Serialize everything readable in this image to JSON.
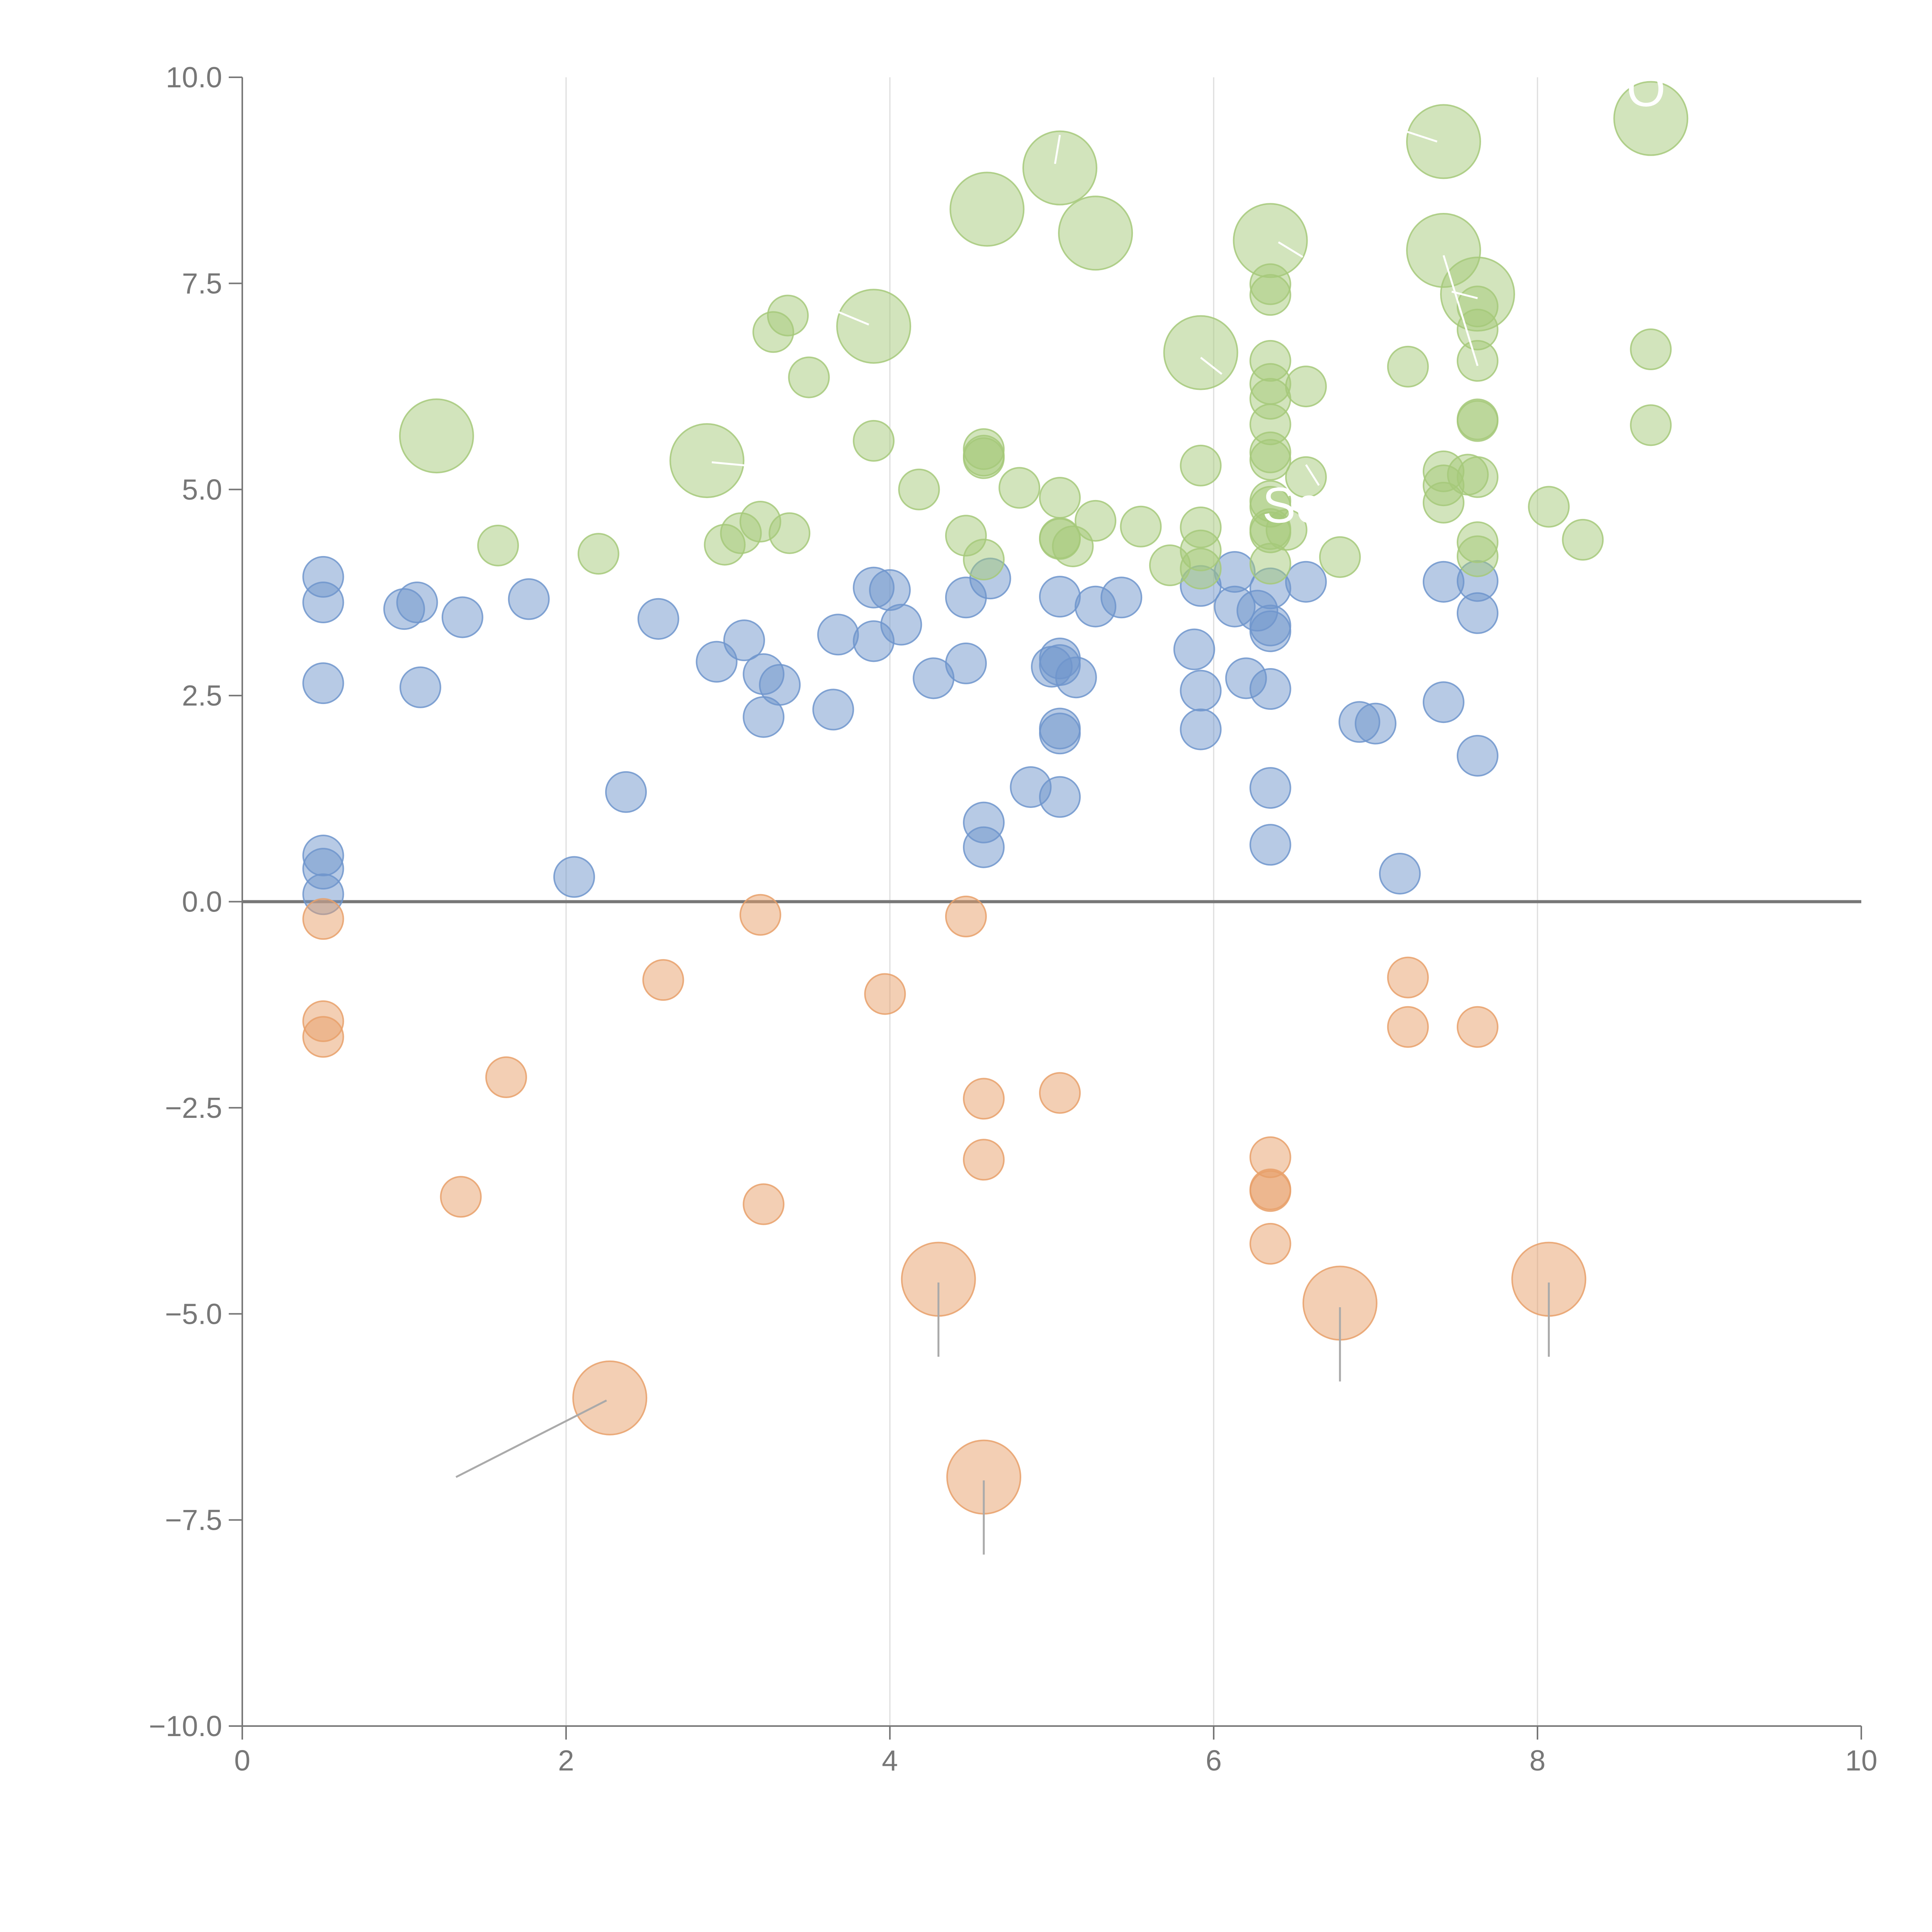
{
  "chart_data": {
    "type": "scatter",
    "title": "",
    "xlabel": "",
    "ylabel": "",
    "xlim": [
      0,
      10
    ],
    "ylim": [
      -10,
      10
    ],
    "x_ticks": [
      0,
      2,
      4,
      6,
      8,
      10
    ],
    "y_ticks": [
      -10,
      -7.5,
      -5,
      -2.5,
      0,
      2.5,
      5,
      7.5,
      10
    ],
    "x_tick_labels": [
      "0",
      "2",
      "4",
      "6",
      "8",
      "10"
    ],
    "y_tick_labels": [
      "−10.0",
      "−7.5",
      "−5.0",
      "−2.5",
      "0.0",
      "2.5",
      "5.0",
      "7.5",
      "10.0"
    ],
    "vertical_gridlines": [
      2,
      4,
      6,
      8
    ],
    "zero_line": 0,
    "colors": {
      "blue": "#6f95cc",
      "green": "#a6c97a",
      "orange": "#e8a06a",
      "axis": "#777777",
      "grid": "#dddddd",
      "zero_line": "#777777",
      "leader": "#aaaaaa",
      "annot": "#ffffff"
    },
    "series": [
      {
        "name": "blue",
        "color_key": "blue",
        "points": [
          {
            "x": 0.5,
            "y": 3.94
          },
          {
            "x": 0.5,
            "y": 3.63
          },
          {
            "x": 0.5,
            "y": 2.65
          },
          {
            "x": 1.0,
            "y": 3.55
          },
          {
            "x": 1.08,
            "y": 3.63
          },
          {
            "x": 1.1,
            "y": 2.6
          },
          {
            "x": 1.36,
            "y": 3.45
          },
          {
            "x": 1.77,
            "y": 3.67
          },
          {
            "x": 2.57,
            "y": 3.43
          },
          {
            "x": 2.93,
            "y": 2.91
          },
          {
            "x": 3.1,
            "y": 3.17
          },
          {
            "x": 3.22,
            "y": 2.76
          },
          {
            "x": 3.22,
            "y": 2.24
          },
          {
            "x": 3.32,
            "y": 2.63
          },
          {
            "x": 3.65,
            "y": 2.33
          },
          {
            "x": 3.68,
            "y": 3.24
          },
          {
            "x": 3.9,
            "y": 3.81
          },
          {
            "x": 3.9,
            "y": 3.16
          },
          {
            "x": 4.0,
            "y": 3.78
          },
          {
            "x": 4.07,
            "y": 3.36
          },
          {
            "x": 4.27,
            "y": 2.71
          },
          {
            "x": 4.47,
            "y": 3.69
          },
          {
            "x": 4.47,
            "y": 2.89
          },
          {
            "x": 4.62,
            "y": 3.92
          },
          {
            "x": 5.0,
            "y": 2.85
          },
          {
            "x": 5.05,
            "y": 2.95
          },
          {
            "x": 5.05,
            "y": 2.87
          },
          {
            "x": 5.05,
            "y": 3.7
          },
          {
            "x": 5.15,
            "y": 2.72
          },
          {
            "x": 5.27,
            "y": 3.58
          },
          {
            "x": 5.43,
            "y": 3.69
          },
          {
            "x": 5.88,
            "y": 3.06
          },
          {
            "x": 5.92,
            "y": 3.83
          },
          {
            "x": 5.92,
            "y": 2.56
          },
          {
            "x": 5.92,
            "y": 2.09
          },
          {
            "x": 6.13,
            "y": 4.0
          },
          {
            "x": 6.13,
            "y": 3.58
          },
          {
            "x": 6.2,
            "y": 2.71
          },
          {
            "x": 6.27,
            "y": 3.53
          },
          {
            "x": 6.35,
            "y": 3.35
          },
          {
            "x": 6.35,
            "y": 3.28
          },
          {
            "x": 6.35,
            "y": 3.8
          },
          {
            "x": 6.35,
            "y": 2.58
          },
          {
            "x": 6.57,
            "y": 3.88
          },
          {
            "x": 6.9,
            "y": 2.18
          },
          {
            "x": 7.0,
            "y": 2.16
          },
          {
            "x": 7.42,
            "y": 3.88
          },
          {
            "x": 7.42,
            "y": 2.42
          },
          {
            "x": 7.63,
            "y": 3.89
          },
          {
            "x": 7.63,
            "y": 3.5
          },
          {
            "x": 7.63,
            "y": 1.77
          },
          {
            "x": 0.5,
            "y": 0.56
          },
          {
            "x": 0.5,
            "y": 0.4
          },
          {
            "x": 0.5,
            "y": 0.09
          },
          {
            "x": 2.05,
            "y": 0.3
          },
          {
            "x": 2.37,
            "y": 1.33
          },
          {
            "x": 4.58,
            "y": 0.96
          },
          {
            "x": 4.58,
            "y": 0.66
          },
          {
            "x": 4.87,
            "y": 1.39
          },
          {
            "x": 5.05,
            "y": 2.1
          },
          {
            "x": 5.05,
            "y": 2.04
          },
          {
            "x": 5.05,
            "y": 1.27
          },
          {
            "x": 6.35,
            "y": 1.38
          },
          {
            "x": 6.35,
            "y": 0.69
          },
          {
            "x": 7.15,
            "y": 0.34
          }
        ]
      },
      {
        "name": "green",
        "color_key": "green",
        "points": [
          {
            "x": 1.58,
            "y": 4.32
          },
          {
            "x": 2.2,
            "y": 4.22
          },
          {
            "x": 2.98,
            "y": 4.33
          },
          {
            "x": 3.08,
            "y": 4.47
          },
          {
            "x": 3.2,
            "y": 4.61
          },
          {
            "x": 3.38,
            "y": 4.47
          },
          {
            "x": 3.28,
            "y": 6.91
          },
          {
            "x": 3.37,
            "y": 7.11
          },
          {
            "x": 3.5,
            "y": 6.36
          },
          {
            "x": 3.9,
            "y": 5.59
          },
          {
            "x": 4.18,
            "y": 5.0
          },
          {
            "x": 4.47,
            "y": 4.44
          },
          {
            "x": 4.58,
            "y": 5.49
          },
          {
            "x": 4.58,
            "y": 5.41
          },
          {
            "x": 4.58,
            "y": 5.38
          },
          {
            "x": 4.58,
            "y": 4.15
          },
          {
            "x": 4.8,
            "y": 5.02
          },
          {
            "x": 5.05,
            "y": 4.9
          },
          {
            "x": 5.05,
            "y": 4.41
          },
          {
            "x": 5.05,
            "y": 4.4
          },
          {
            "x": 5.13,
            "y": 4.31
          },
          {
            "x": 5.27,
            "y": 4.62
          },
          {
            "x": 5.55,
            "y": 4.55
          },
          {
            "x": 5.73,
            "y": 4.08
          },
          {
            "x": 5.92,
            "y": 5.29
          },
          {
            "x": 5.92,
            "y": 4.54
          },
          {
            "x": 5.92,
            "y": 4.26
          },
          {
            "x": 5.92,
            "y": 4.04
          },
          {
            "x": 6.35,
            "y": 7.49
          },
          {
            "x": 6.35,
            "y": 7.36
          },
          {
            "x": 6.35,
            "y": 6.56
          },
          {
            "x": 6.35,
            "y": 6.28
          },
          {
            "x": 6.35,
            "y": 6.1
          },
          {
            "x": 6.35,
            "y": 5.79
          },
          {
            "x": 6.35,
            "y": 5.45
          },
          {
            "x": 6.35,
            "y": 5.36
          },
          {
            "x": 6.35,
            "y": 4.86
          },
          {
            "x": 6.35,
            "y": 4.79
          },
          {
            "x": 6.35,
            "y": 4.52
          },
          {
            "x": 6.35,
            "y": 4.48
          },
          {
            "x": 6.35,
            "y": 4.1
          },
          {
            "x": 6.45,
            "y": 4.51
          },
          {
            "x": 6.57,
            "y": 6.25
          },
          {
            "x": 6.57,
            "y": 5.15
          },
          {
            "x": 6.78,
            "y": 4.18
          },
          {
            "x": 7.2,
            "y": 6.49
          },
          {
            "x": 7.42,
            "y": 5.22
          },
          {
            "x": 7.42,
            "y": 5.05
          },
          {
            "x": 7.42,
            "y": 4.84
          },
          {
            "x": 7.57,
            "y": 5.18
          },
          {
            "x": 7.63,
            "y": 7.22
          },
          {
            "x": 7.63,
            "y": 6.94
          },
          {
            "x": 7.63,
            "y": 6.56
          },
          {
            "x": 7.63,
            "y": 5.85
          },
          {
            "x": 7.63,
            "y": 5.83
          },
          {
            "x": 7.63,
            "y": 5.15
          },
          {
            "x": 7.63,
            "y": 4.36
          },
          {
            "x": 7.63,
            "y": 4.19
          },
          {
            "x": 8.07,
            "y": 4.79
          },
          {
            "x": 8.28,
            "y": 4.39
          },
          {
            "x": 8.7,
            "y": 6.7
          },
          {
            "x": 8.7,
            "y": 5.78
          }
        ]
      },
      {
        "name": "orange",
        "color_key": "orange",
        "points": [
          {
            "x": 0.5,
            "y": -0.21
          },
          {
            "x": 0.5,
            "y": -1.45
          },
          {
            "x": 0.5,
            "y": -1.64
          },
          {
            "x": 1.35,
            "y": -3.58
          },
          {
            "x": 1.63,
            "y": -2.13
          },
          {
            "x": 2.6,
            "y": -0.95
          },
          {
            "x": 3.2,
            "y": -0.16
          },
          {
            "x": 3.22,
            "y": -3.67
          },
          {
            "x": 3.97,
            "y": -1.12
          },
          {
            "x": 4.47,
            "y": -0.18
          },
          {
            "x": 4.58,
            "y": -2.39
          },
          {
            "x": 4.58,
            "y": -3.13
          },
          {
            "x": 5.05,
            "y": -2.32
          },
          {
            "x": 6.35,
            "y": -3.1
          },
          {
            "x": 6.35,
            "y": -3.49
          },
          {
            "x": 6.35,
            "y": -3.51
          },
          {
            "x": 6.35,
            "y": -4.15
          },
          {
            "x": 7.2,
            "y": -0.92
          },
          {
            "x": 7.2,
            "y": -1.52
          },
          {
            "x": 7.63,
            "y": -1.52
          }
        ]
      }
    ],
    "highlights": [
      {
        "series": "green",
        "x": 1.2,
        "y": 5.65
      },
      {
        "series": "green",
        "x": 2.87,
        "y": 5.35
      },
      {
        "series": "green",
        "x": 3.9,
        "y": 6.98
      },
      {
        "series": "green",
        "x": 4.6,
        "y": 8.4
      },
      {
        "series": "green",
        "x": 5.05,
        "y": 8.9
      },
      {
        "series": "green",
        "x": 5.27,
        "y": 8.11
      },
      {
        "series": "green",
        "x": 5.92,
        "y": 6.66
      },
      {
        "series": "green",
        "x": 6.35,
        "y": 8.02
      },
      {
        "series": "green",
        "x": 7.42,
        "y": 9.22
      },
      {
        "series": "green",
        "x": 7.42,
        "y": 7.9
      },
      {
        "series": "green",
        "x": 7.63,
        "y": 7.37
      },
      {
        "series": "green",
        "x": 8.7,
        "y": 9.5
      },
      {
        "series": "orange",
        "x": 2.27,
        "y": -6.02
      },
      {
        "series": "orange",
        "x": 4.3,
        "y": -4.58
      },
      {
        "series": "orange",
        "x": 4.58,
        "y": -6.98
      },
      {
        "series": "orange",
        "x": 6.78,
        "y": -4.87
      },
      {
        "series": "orange",
        "x": 8.07,
        "y": -4.58
      }
    ],
    "annotations": [
      {
        "text": "Sc",
        "x": 6.3,
        "y": 4.6,
        "color_key": "annot"
      },
      {
        "text": "O",
        "x": 8.55,
        "y": 9.65,
        "color_key": "annot"
      }
    ],
    "leader_lines": [
      {
        "x1": 2.25,
        "y1": -6.05,
        "x2": 1.32,
        "y2": -6.98,
        "color_key": "leader"
      },
      {
        "x1": 4.3,
        "y1": -4.62,
        "x2": 4.3,
        "y2": -5.52,
        "color_key": "leader"
      },
      {
        "x1": 4.58,
        "y1": -7.02,
        "x2": 4.58,
        "y2": -7.92,
        "color_key": "leader"
      },
      {
        "x1": 6.78,
        "y1": -4.92,
        "x2": 6.78,
        "y2": -5.82,
        "color_key": "leader"
      },
      {
        "x1": 8.07,
        "y1": -4.62,
        "x2": 8.07,
        "y2": -5.52,
        "color_key": "leader"
      },
      {
        "x1": 5.05,
        "y1": 9.3,
        "x2": 5.02,
        "y2": 8.95,
        "color_key": "annot"
      },
      {
        "x1": 7.07,
        "y1": 9.42,
        "x2": 7.38,
        "y2": 9.22,
        "color_key": "annot"
      },
      {
        "x1": 6.55,
        "y1": 7.82,
        "x2": 6.4,
        "y2": 8.0,
        "color_key": "annot"
      },
      {
        "x1": 7.47,
        "y1": 7.4,
        "x2": 7.63,
        "y2": 7.32,
        "color_key": "annot"
      },
      {
        "x1": 7.42,
        "y1": 7.84,
        "x2": 7.63,
        "y2": 6.5,
        "color_key": "annot"
      },
      {
        "x1": 3.6,
        "y1": 7.22,
        "x2": 3.87,
        "y2": 7.0,
        "color_key": "annot"
      },
      {
        "x1": 6.05,
        "y1": 6.4,
        "x2": 5.92,
        "y2": 6.6,
        "color_key": "annot"
      },
      {
        "x1": 2.9,
        "y1": 5.33,
        "x2": 3.17,
        "y2": 5.28,
        "color_key": "annot"
      },
      {
        "x1": 6.57,
        "y1": 5.3,
        "x2": 6.65,
        "y2": 5.05,
        "color_key": "annot"
      }
    ]
  }
}
